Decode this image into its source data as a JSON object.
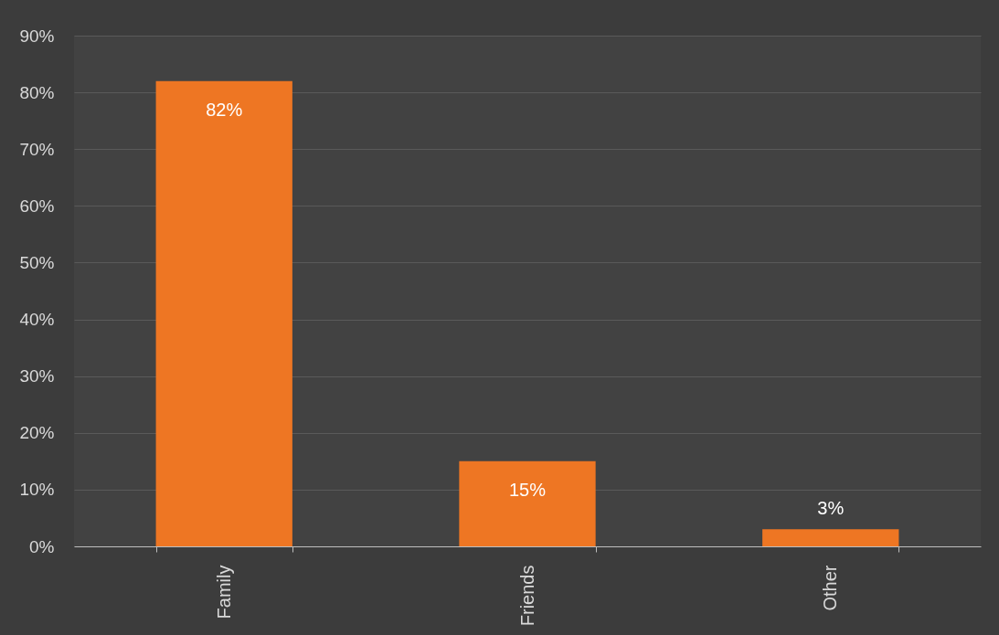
{
  "chart_data": {
    "type": "bar",
    "categories": [
      "Family",
      "Friends",
      "Other"
    ],
    "values": [
      82,
      15,
      3
    ],
    "color": "#ee7623",
    "value_labels": [
      "82%",
      "15%",
      "3%"
    ],
    "ylim": [
      0,
      90
    ],
    "yticks": [
      {
        "value": 0,
        "label": "0%"
      },
      {
        "value": 10,
        "label": "10%"
      },
      {
        "value": 20,
        "label": "20%"
      },
      {
        "value": 30,
        "label": "30%"
      },
      {
        "value": 40,
        "label": "40%"
      },
      {
        "value": 50,
        "label": "50%"
      },
      {
        "value": 60,
        "label": "60%"
      },
      {
        "value": 70,
        "label": "70%"
      },
      {
        "value": 80,
        "label": "80%"
      },
      {
        "value": 90,
        "label": "90%"
      }
    ],
    "grid": "y"
  }
}
